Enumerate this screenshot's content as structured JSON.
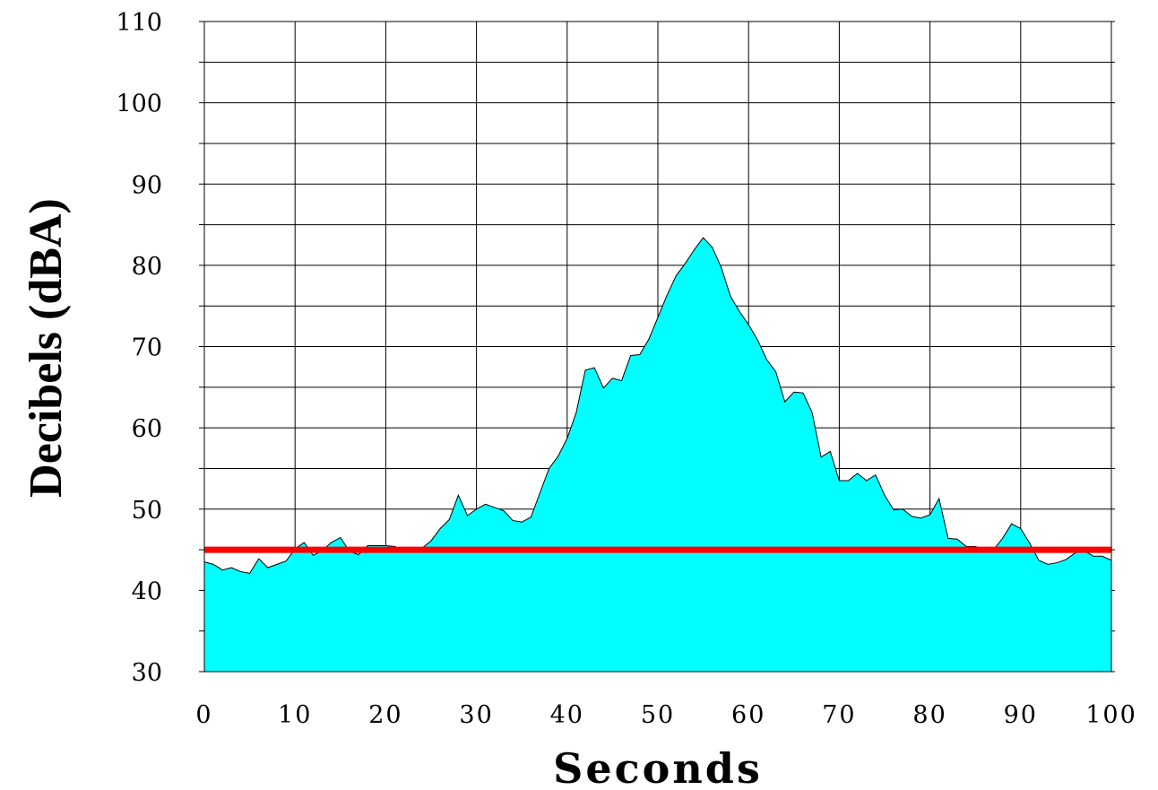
{
  "chart_data": {
    "type": "area",
    "xlabel": "Seconds",
    "ylabel": "Decibels (dBA)",
    "xlim": [
      0,
      100
    ],
    "ylim": [
      30,
      110
    ],
    "x_ticks": [
      "0",
      "10",
      "20",
      "30",
      "40",
      "50",
      "60",
      "70",
      "80",
      "90",
      "100"
    ],
    "y_ticks": [
      "30",
      "40",
      "50",
      "60",
      "70",
      "80",
      "90",
      "100",
      "110"
    ],
    "grid": true,
    "colors": {
      "fill": "#00ffff",
      "outline": "#000000",
      "threshold": "#ff0000"
    },
    "series": [
      {
        "values": [
          43.5,
          43.2,
          42.5,
          42.8,
          42.3,
          42.1,
          43.9,
          42.8,
          43.2,
          43.6,
          45.1,
          45.9,
          44.3,
          44.9,
          45.9,
          46.5,
          44.8,
          44.4,
          45.5,
          45.5,
          45.5,
          45.4,
          45.0,
          45.0,
          45.2,
          46.1,
          47.6,
          48.7,
          51.7,
          49.2,
          50.0,
          50.6,
          50.2,
          49.8,
          48.6,
          48.4,
          49.0,
          52.0,
          55.0,
          56.5,
          58.7,
          61.9,
          67.1,
          67.4,
          64.9,
          66.1,
          65.8,
          68.9,
          69.0,
          70.9,
          73.6,
          76.3,
          78.7,
          80.2,
          81.9,
          83.4,
          82.2,
          79.7,
          76.2,
          74.3,
          72.7,
          70.8,
          68.4,
          66.9,
          63.2,
          64.4,
          64.3,
          61.9,
          56.4,
          57.1,
          53.5,
          53.5,
          54.4,
          53.5,
          54.2,
          51.7,
          49.9,
          50.0,
          49.1,
          48.9,
          49.3,
          51.3,
          46.4,
          46.3,
          45.4,
          45.4,
          45.1,
          45.0,
          46.4,
          48.2,
          47.6,
          45.8,
          43.7,
          43.2,
          43.4,
          43.8,
          44.6,
          44.9,
          44.2,
          44.2,
          43.7
        ]
      }
    ],
    "threshold": 45
  }
}
